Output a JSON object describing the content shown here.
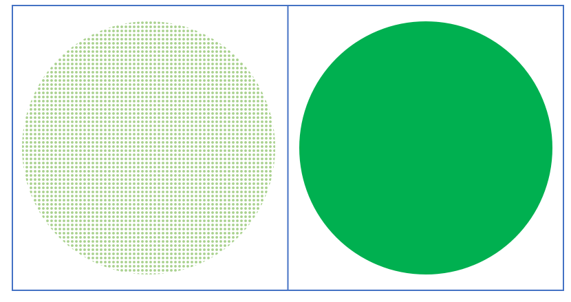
{
  "colors": {
    "frame_border": "#4472C4",
    "pattern_fill": "#A9D18E",
    "solid_fill": "#00B050",
    "background": "#FFFFFF"
  },
  "panels": [
    {
      "name": "left-panel",
      "fill_style": "dotted-pattern"
    },
    {
      "name": "right-panel",
      "fill_style": "solid"
    }
  ]
}
